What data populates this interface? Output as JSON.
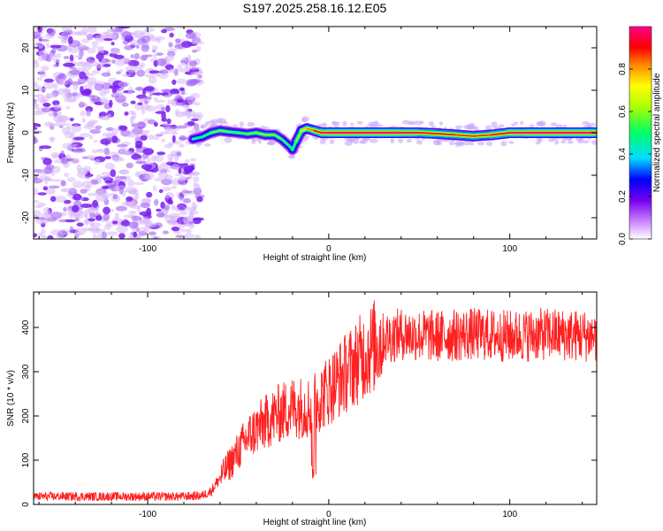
{
  "title": "S197.2025.258.16.12.E05",
  "chart_data": [
    {
      "type": "heatmap",
      "panel": "spectrogram",
      "xlabel": "Height of straight line (km)",
      "ylabel": "Frequency (Hz)",
      "xlim": [
        -163,
        148
      ],
      "ylim": [
        -25,
        25
      ],
      "xticks": [
        -100,
        0,
        100
      ],
      "yticks": [
        -20,
        -10,
        0,
        10,
        20
      ],
      "noise_region_x": [
        -163,
        -73
      ],
      "signal_track": {
        "x": [
          -75,
          -70,
          -65,
          -60,
          -55,
          -50,
          -45,
          -40,
          -35,
          -30,
          -26,
          -22,
          -20,
          -18,
          -15,
          -12,
          -8,
          -4,
          0,
          10,
          20,
          30,
          40,
          50,
          60,
          70,
          80,
          90,
          100,
          110,
          120,
          130,
          140,
          148
        ],
        "freq": [
          -1.5,
          -1,
          0,
          0.5,
          0.2,
          0,
          -0.3,
          0,
          -0.5,
          -0.5,
          -1.5,
          -3,
          -4,
          -2,
          0.5,
          1,
          0.5,
          0,
          0,
          0,
          0,
          0,
          0,
          0,
          -0.2,
          -0.5,
          -0.8,
          -0.5,
          0,
          0,
          0,
          0,
          0,
          0
        ],
        "amplitude": [
          0.45,
          0.5,
          0.55,
          0.6,
          0.55,
          0.55,
          0.55,
          0.6,
          0.6,
          0.6,
          0.55,
          0.5,
          0.5,
          0.55,
          0.7,
          0.8,
          0.85,
          0.95,
          1,
          1,
          1,
          1,
          1,
          0.95,
          0.9,
          0.9,
          0.85,
          0.9,
          0.95,
          1,
          1,
          1,
          1,
          1
        ]
      }
    },
    {
      "type": "line",
      "panel": "snr",
      "xlabel": "Height of straight line (km)",
      "ylabel": "SNR (10 * v/v)",
      "xlim": [
        -163,
        148
      ],
      "ylim": [
        0,
        480
      ],
      "xticks": [
        -100,
        0,
        100
      ],
      "yticks": [
        0,
        100,
        200,
        300,
        400
      ],
      "color": "#ff2020",
      "trend": {
        "x": [
          -163,
          -140,
          -100,
          -80,
          -70,
          -65,
          -60,
          -55,
          -50,
          -45,
          -40,
          -30,
          -20,
          -10,
          0,
          10,
          20,
          30,
          40,
          60,
          80,
          100,
          120,
          148
        ],
        "y": [
          18,
          18,
          18,
          18,
          20,
          30,
          60,
          90,
          120,
          150,
          170,
          200,
          220,
          220,
          260,
          300,
          340,
          375,
          385,
          380,
          385,
          380,
          385,
          380
        ]
      },
      "noise_amplitude": [
        10,
        60
      ]
    }
  ],
  "colorbar": {
    "label": "Normalized spectral amplitude",
    "ticks": [
      {
        "value": 0.0,
        "label": "0.0"
      },
      {
        "value": 0.2,
        "label": "0.2"
      },
      {
        "value": 0.4,
        "label": "0.4"
      },
      {
        "value": 0.6,
        "label": "0.6"
      },
      {
        "value": 0.8,
        "label": "0.8"
      }
    ],
    "stops": [
      {
        "value": 0.0,
        "color": "#ffffff"
      },
      {
        "value": 0.08,
        "color": "#cc88ff"
      },
      {
        "value": 0.18,
        "color": "#7700ee"
      },
      {
        "value": 0.28,
        "color": "#0000ff"
      },
      {
        "value": 0.38,
        "color": "#00ddff"
      },
      {
        "value": 0.5,
        "color": "#00ff66"
      },
      {
        "value": 0.62,
        "color": "#aaff00"
      },
      {
        "value": 0.72,
        "color": "#ffff00"
      },
      {
        "value": 0.82,
        "color": "#ff8800"
      },
      {
        "value": 0.9,
        "color": "#ff0000"
      },
      {
        "value": 1.0,
        "color": "#ff0088"
      }
    ]
  }
}
